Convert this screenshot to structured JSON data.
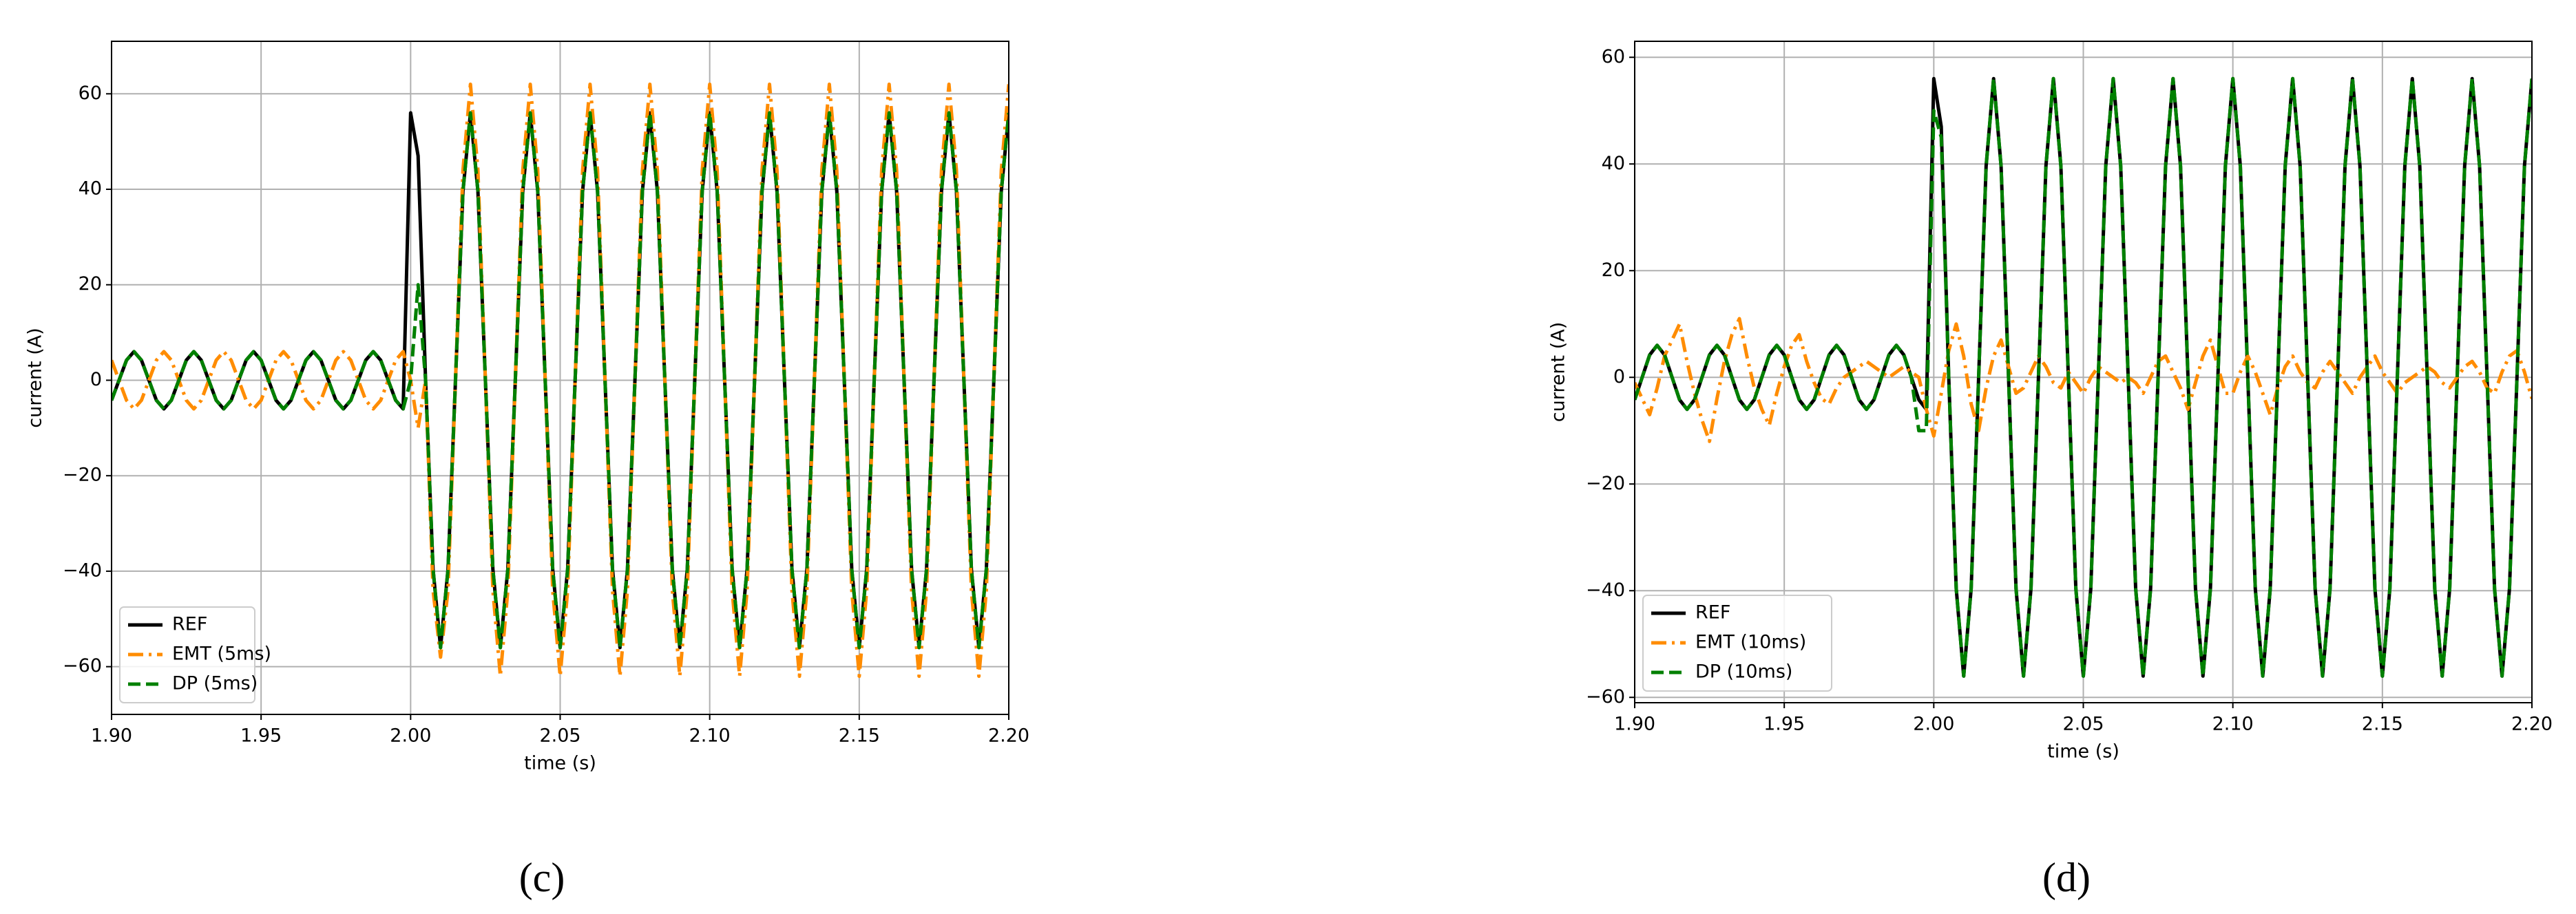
{
  "chart_data": [
    {
      "type": "line",
      "caption": "(c)",
      "xlabel": "time (s)",
      "ylabel": "current (A)",
      "grid": true,
      "legend": "lower left",
      "xlim": [
        1.9,
        2.2
      ],
      "ylim": [
        -70,
        71
      ],
      "xticks": [
        {
          "value": 1.9,
          "label": "1.90"
        },
        1.95,
        {
          "value": 2.0,
          "label": "2.00"
        },
        2.05,
        {
          "value": 2.1,
          "label": "2.10"
        },
        2.15,
        {
          "value": 2.2,
          "label": "2.20"
        }
      ],
      "yticks": [
        {
          "value": -60,
          "label": "−60"
        },
        {
          "value": -40,
          "label": "−40"
        },
        {
          "value": -20,
          "label": "−20"
        },
        0,
        20,
        40,
        60
      ],
      "x": [
        1.9,
        1.9025,
        1.905,
        1.9075,
        1.91,
        1.9125,
        1.915,
        1.9175,
        1.92,
        1.9225,
        1.925,
        1.9275,
        1.93,
        1.9325,
        1.935,
        1.9375,
        1.94,
        1.9425,
        1.945,
        1.9475,
        1.95,
        1.9525,
        1.955,
        1.9575,
        1.96,
        1.9625,
        1.965,
        1.9675,
        1.97,
        1.9725,
        1.975,
        1.9775,
        1.98,
        1.9825,
        1.985,
        1.9875,
        1.99,
        1.9925,
        1.995,
        1.9975,
        2.0,
        2.0025,
        2.005,
        2.0075,
        2.01,
        2.0125,
        2.015,
        2.0175,
        2.02,
        2.0225,
        2.025,
        2.0275,
        2.03,
        2.0325,
        2.035,
        2.0375,
        2.04,
        2.0425,
        2.045,
        2.0475,
        2.05,
        2.0525,
        2.055,
        2.0575,
        2.06,
        2.0625,
        2.065,
        2.0675,
        2.07,
        2.0725,
        2.075,
        2.0775,
        2.08,
        2.0825,
        2.085,
        2.0875,
        2.09,
        2.0925,
        2.095,
        2.0975,
        2.1,
        2.1025,
        2.105,
        2.1075,
        2.11,
        2.1125,
        2.115,
        2.1175,
        2.12,
        2.1225,
        2.125,
        2.1275,
        2.13,
        2.1325,
        2.135,
        2.1375,
        2.14,
        2.1425,
        2.145,
        2.1475,
        2.15,
        2.1525,
        2.155,
        2.1575,
        2.16,
        2.1625,
        2.165,
        2.1675,
        2.17,
        2.1725,
        2.175,
        2.1775,
        2.18,
        2.1825,
        2.185,
        2.1875,
        2.19,
        2.1925,
        2.195,
        2.1975,
        2.2
      ],
      "series": [
        {
          "name": "REF",
          "color": "#000000",
          "linestyle": "solid",
          "values": [
            -4.2,
            0,
            4.2,
            6,
            4.2,
            0,
            -4.2,
            -6,
            -4.2,
            0,
            4.2,
            6,
            4.2,
            0,
            -4.2,
            -6,
            -4.2,
            0,
            4.2,
            6,
            4.2,
            0,
            -4.2,
            -6,
            -4.2,
            0,
            4.2,
            6,
            4.2,
            0,
            -4.2,
            -6,
            -4.2,
            0,
            4.2,
            6,
            4.2,
            0,
            -4.2,
            -6,
            56,
            47,
            0,
            -39.6,
            -56,
            -39.6,
            0,
            39.6,
            56,
            39.6,
            0,
            -39.6,
            -56,
            -39.6,
            0,
            39.6,
            56,
            39.6,
            0,
            -39.6,
            -56,
            -39.6,
            0,
            39.6,
            56,
            39.6,
            0,
            -39.6,
            -56,
            -39.6,
            0,
            39.6,
            56,
            39.6,
            0,
            -39.6,
            -56,
            -39.6,
            0,
            39.6,
            56,
            39.6,
            0,
            -39.6,
            -56,
            -39.6,
            0,
            39.6,
            56,
            39.6,
            0,
            -39.6,
            -56,
            -39.6,
            0,
            39.6,
            56,
            39.6,
            0,
            -39.6,
            -56,
            -39.6,
            0,
            39.6,
            56,
            39.6,
            0,
            -39.6,
            -56,
            -39.6,
            0,
            39.6,
            56,
            39.6,
            0,
            -39.6,
            -56,
            -39.6,
            0,
            39.6,
            56
          ]
        },
        {
          "name": "EMT (5ms)",
          "color": "#ff8c00",
          "linestyle": "dashdot",
          "values": [
            4.2,
            0,
            -4.2,
            -6,
            -4.2,
            0,
            4.2,
            6,
            4.2,
            0,
            -4.2,
            -6,
            -4.2,
            0,
            4.2,
            6,
            4.2,
            0,
            -4.2,
            -6,
            -4.2,
            0,
            4.2,
            6,
            4.2,
            0,
            -4.2,
            -6,
            -4.2,
            0,
            4.2,
            6,
            4.2,
            0,
            -4.2,
            -6,
            -4.2,
            0,
            4.2,
            6,
            0,
            -10,
            0,
            -44,
            -58,
            -44,
            0,
            44,
            62,
            44,
            0,
            -44,
            -62,
            -44,
            0,
            44,
            62,
            44,
            0,
            -44,
            -62,
            -44,
            0,
            44,
            62,
            44,
            0,
            -44,
            -62,
            -44,
            0,
            44,
            62,
            44,
            0,
            -44,
            -62,
            -44,
            0,
            44,
            62,
            44,
            0,
            -44,
            -62,
            -44,
            0,
            44,
            62,
            44,
            0,
            -44,
            -62,
            -44,
            0,
            44,
            62,
            44,
            0,
            -44,
            -62,
            -44,
            0,
            44,
            62,
            44,
            0,
            -44,
            -62,
            -44,
            0,
            44,
            62,
            44,
            0,
            -44,
            -62,
            -44,
            0,
            44,
            62
          ]
        },
        {
          "name": "DP (5ms)",
          "color": "#008000",
          "linestyle": "dashed",
          "values": [
            -4.2,
            0,
            4.2,
            6,
            4.2,
            0,
            -4.2,
            -6,
            -4.2,
            0,
            4.2,
            6,
            4.2,
            0,
            -4.2,
            -6,
            -4.2,
            0,
            4.2,
            6,
            4.2,
            0,
            -4.2,
            -6,
            -4.2,
            0,
            4.2,
            6,
            4.2,
            0,
            -4.2,
            -6,
            -4.2,
            0,
            4.2,
            6,
            4.2,
            0,
            -4.2,
            -6,
            0,
            20,
            0,
            -39.6,
            -56,
            -39.6,
            0,
            39.6,
            56,
            39.6,
            0,
            -39.6,
            -56,
            -39.6,
            0,
            39.6,
            56,
            39.6,
            0,
            -39.6,
            -56,
            -39.6,
            0,
            39.6,
            56,
            39.6,
            0,
            -39.6,
            -56,
            -39.6,
            0,
            39.6,
            56,
            39.6,
            0,
            -39.6,
            -56,
            -39.6,
            0,
            39.6,
            56,
            39.6,
            0,
            -39.6,
            -56,
            -39.6,
            0,
            39.6,
            56,
            39.6,
            0,
            -39.6,
            -56,
            -39.6,
            0,
            39.6,
            56,
            39.6,
            0,
            -39.6,
            -56,
            -39.6,
            0,
            39.6,
            56,
            39.6,
            0,
            -39.6,
            -56,
            -39.6,
            0,
            39.6,
            56,
            39.6,
            0,
            -39.6,
            -56,
            -39.6,
            0,
            39.6,
            56
          ]
        }
      ]
    },
    {
      "type": "line",
      "caption": "(d)",
      "xlabel": "time (s)",
      "ylabel": "current (A)",
      "grid": true,
      "legend": "lower left",
      "xlim": [
        1.9,
        2.2
      ],
      "ylim": [
        -61,
        63
      ],
      "xticks": [
        {
          "value": 1.9,
          "label": "1.90"
        },
        1.95,
        {
          "value": 2.0,
          "label": "2.00"
        },
        2.05,
        {
          "value": 2.1,
          "label": "2.10"
        },
        2.15,
        {
          "value": 2.2,
          "label": "2.20"
        }
      ],
      "yticks": [
        {
          "value": -60,
          "label": "−60"
        },
        {
          "value": -40,
          "label": "−40"
        },
        {
          "value": -20,
          "label": "−20"
        },
        0,
        20,
        40,
        60
      ],
      "x": [
        1.9,
        1.9025,
        1.905,
        1.9075,
        1.91,
        1.9125,
        1.915,
        1.9175,
        1.92,
        1.9225,
        1.925,
        1.9275,
        1.93,
        1.9325,
        1.935,
        1.9375,
        1.94,
        1.9425,
        1.945,
        1.9475,
        1.95,
        1.9525,
        1.955,
        1.9575,
        1.96,
        1.9625,
        1.965,
        1.9675,
        1.97,
        1.9725,
        1.975,
        1.9775,
        1.98,
        1.9825,
        1.985,
        1.9875,
        1.99,
        1.9925,
        1.995,
        1.9975,
        2.0,
        2.0025,
        2.005,
        2.0075,
        2.01,
        2.0125,
        2.015,
        2.0175,
        2.02,
        2.0225,
        2.025,
        2.0275,
        2.03,
        2.0325,
        2.035,
        2.0375,
        2.04,
        2.0425,
        2.045,
        2.0475,
        2.05,
        2.0525,
        2.055,
        2.0575,
        2.06,
        2.0625,
        2.065,
        2.0675,
        2.07,
        2.0725,
        2.075,
        2.0775,
        2.08,
        2.0825,
        2.085,
        2.0875,
        2.09,
        2.0925,
        2.095,
        2.0975,
        2.1,
        2.1025,
        2.105,
        2.1075,
        2.11,
        2.1125,
        2.115,
        2.1175,
        2.12,
        2.1225,
        2.125,
        2.1275,
        2.13,
        2.1325,
        2.135,
        2.1375,
        2.14,
        2.1425,
        2.145,
        2.1475,
        2.15,
        2.1525,
        2.155,
        2.1575,
        2.16,
        2.1625,
        2.165,
        2.1675,
        2.17,
        2.1725,
        2.175,
        2.1775,
        2.18,
        2.1825,
        2.185,
        2.1875,
        2.19,
        2.1925,
        2.195,
        2.1975,
        2.2
      ],
      "series": [
        {
          "name": "REF",
          "color": "#000000",
          "linestyle": "solid",
          "values": [
            -4.2,
            0,
            4.2,
            6,
            4.2,
            0,
            -4.2,
            -6,
            -4.2,
            0,
            4.2,
            6,
            4.2,
            0,
            -4.2,
            -6,
            -4.2,
            0,
            4.2,
            6,
            4.2,
            0,
            -4.2,
            -6,
            -4.2,
            0,
            4.2,
            6,
            4.2,
            0,
            -4.2,
            -6,
            -4.2,
            0,
            4.2,
            6,
            4.2,
            0,
            -4.2,
            -6,
            56,
            47,
            0,
            -39.6,
            -56,
            -39.6,
            0,
            39.6,
            56,
            39.6,
            0,
            -39.6,
            -56,
            -39.6,
            0,
            39.6,
            56,
            39.6,
            0,
            -39.6,
            -56,
            -39.6,
            0,
            39.6,
            56,
            39.6,
            0,
            -39.6,
            -56,
            -39.6,
            0,
            39.6,
            56,
            39.6,
            0,
            -39.6,
            -56,
            -39.6,
            0,
            39.6,
            56,
            39.6,
            0,
            -39.6,
            -56,
            -39.6,
            0,
            39.6,
            56,
            39.6,
            0,
            -39.6,
            -56,
            -39.6,
            0,
            39.6,
            56,
            39.6,
            0,
            -39.6,
            -56,
            -39.6,
            0,
            39.6,
            56,
            39.6,
            0,
            -39.6,
            -56,
            -39.6,
            0,
            39.6,
            56,
            39.6,
            0,
            -39.6,
            -56,
            -39.6,
            0,
            39.6,
            56
          ]
        },
        {
          "name": "EMT (10ms)",
          "color": "#ff8c00",
          "linestyle": "dashdot",
          "values": [
            -1,
            -4,
            -7,
            -2,
            4,
            7,
            10,
            3,
            -3,
            -8,
            -12,
            -4,
            3,
            8,
            11,
            4,
            -2,
            -6,
            -9,
            -3,
            2,
            6,
            8,
            3,
            -1,
            -4,
            -5,
            -2,
            0,
            1,
            2,
            3,
            2,
            1,
            0,
            1,
            2,
            1,
            0,
            -6,
            -11,
            -3,
            5,
            10,
            4,
            -5,
            -10,
            -2,
            4,
            7,
            2,
            -3,
            -2,
            1,
            4,
            2,
            -1,
            -2,
            1,
            -1,
            -3,
            0,
            2,
            1,
            0,
            -1,
            0,
            -1,
            -3,
            0,
            3,
            4,
            1,
            -2,
            -6,
            -1,
            4,
            7,
            2,
            -3,
            -3,
            1,
            4,
            1,
            -3,
            -7,
            -2,
            2,
            4,
            1,
            -1,
            -2,
            1,
            3,
            1,
            -1,
            -3,
            0,
            2,
            4,
            1,
            -1,
            -3,
            -1,
            0,
            1,
            2,
            1,
            -1,
            -2,
            0,
            2,
            3,
            1,
            -2,
            -3,
            1,
            4,
            5,
            1,
            -4
          ]
        },
        {
          "name": "DP (10ms)",
          "color": "#008000",
          "linestyle": "dashed",
          "values": [
            -4.2,
            0,
            4.2,
            6,
            4.2,
            0,
            -4.2,
            -6,
            -4.2,
            0,
            4.2,
            6,
            4.2,
            0,
            -4.2,
            -6,
            -4.2,
            0,
            4.2,
            6,
            4.2,
            0,
            -4.2,
            -6,
            -4.2,
            0,
            4.2,
            6,
            4.2,
            0,
            -4.2,
            -6,
            -4.2,
            0,
            4.2,
            6,
            4.2,
            0,
            -10,
            -10,
            50,
            45,
            0,
            -39.6,
            -56,
            -39.6,
            0,
            39.6,
            56,
            39.6,
            0,
            -39.6,
            -56,
            -39.6,
            0,
            39.6,
            56,
            39.6,
            0,
            -39.6,
            -56,
            -39.6,
            0,
            39.6,
            56,
            39.6,
            0,
            -39.6,
            -56,
            -39.6,
            0,
            39.6,
            56,
            39.6,
            0,
            -39.6,
            -56,
            -39.6,
            0,
            39.6,
            56,
            39.6,
            0,
            -39.6,
            -56,
            -39.6,
            0,
            39.6,
            56,
            39.6,
            0,
            -39.6,
            -56,
            -39.6,
            0,
            39.6,
            56,
            39.6,
            0,
            -39.6,
            -56,
            -39.6,
            0,
            39.6,
            56,
            39.6,
            0,
            -39.6,
            -56,
            -39.6,
            0,
            39.6,
            56,
            39.6,
            0,
            -39.6,
            -56,
            -39.6,
            0,
            39.6,
            56
          ]
        }
      ]
    }
  ]
}
